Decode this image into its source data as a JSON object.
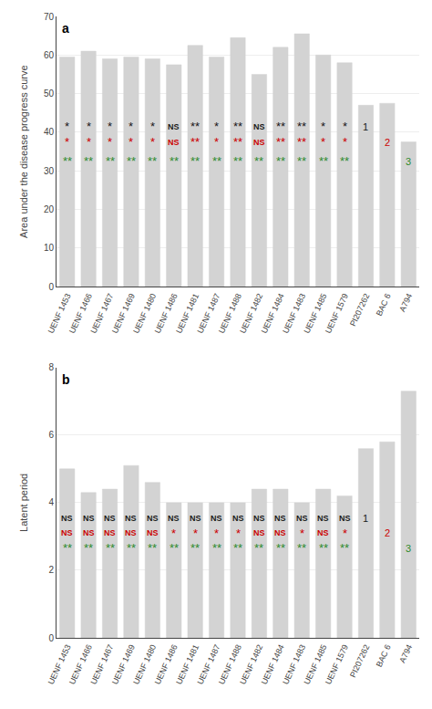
{
  "chart_data": [
    {
      "type": "bar",
      "panel_label": "a",
      "ylabel": "Area under the disease progress curve",
      "categories": [
        "UENF 1453",
        "UENF 1466",
        "UENF 1467",
        "UENF 1469",
        "UENF 1480",
        "UENF 1486",
        "UENF 1481",
        "UENF 1487",
        "UENF 1488",
        "UENF 1482",
        "UENF 1484",
        "UENF 1483",
        "UENF 1485",
        "UENF 1579",
        "PI207262",
        "BAC 6",
        "A794"
      ],
      "values": [
        59.5,
        61.0,
        59.0,
        59.5,
        59.0,
        57.5,
        62.5,
        59.5,
        64.5,
        55.0,
        62.0,
        65.5,
        60.0,
        58.0,
        47.0,
        47.5,
        37.5
      ],
      "color": "#d3d3d3",
      "ylim": [
        0,
        70
      ],
      "yticks": [
        0,
        10,
        20,
        30,
        40,
        50,
        60,
        70
      ],
      "grid": true,
      "annotations": [
        {
          "color": "#1a1a1a",
          "y": 41.5,
          "texts": [
            "*",
            "*",
            "*",
            "*",
            "*",
            "NS",
            "**",
            "*",
            "**",
            "NS",
            "**",
            "**",
            "*",
            "*",
            "1",
            null,
            null
          ]
        },
        {
          "color": "#cc0000",
          "y": 37.5,
          "texts": [
            "*",
            "*",
            "*",
            "*",
            "*",
            "NS",
            "**",
            "*",
            "**",
            "NS",
            "**",
            "**",
            "*",
            "*",
            null,
            "2",
            null
          ]
        },
        {
          "color": "#2e8b2e",
          "y": 32.5,
          "texts": [
            "**",
            "**",
            "**",
            "**",
            "**",
            "**",
            "**",
            "**",
            "**",
            "**",
            "**",
            "**",
            "**",
            "**",
            null,
            null,
            "3"
          ]
        }
      ]
    },
    {
      "type": "bar",
      "panel_label": "b",
      "ylabel": "Latent period",
      "categories": [
        "UENF 1453",
        "UENF 1466",
        "UENF 1467",
        "UENF 1469",
        "UENF 1480",
        "UENF 1486",
        "UENF 1481",
        "UENF 1487",
        "UENF 1488",
        "UENF 1482",
        "UENF 1484",
        "UENF 1483",
        "UENF 1485",
        "UENF 1579",
        "PI207262",
        "BAC 6",
        "A794"
      ],
      "values": [
        5.0,
        4.3,
        4.4,
        5.1,
        4.6,
        4.0,
        4.0,
        4.0,
        4.0,
        4.4,
        4.4,
        4.0,
        4.4,
        4.2,
        5.6,
        5.8,
        7.3
      ],
      "color": "#d3d3d3",
      "ylim": [
        0,
        8
      ],
      "yticks": [
        0,
        2,
        4,
        6,
        8
      ],
      "grid": true,
      "annotations": [
        {
          "color": "#1a1a1a",
          "y": 3.55,
          "texts": [
            "NS",
            "NS",
            "NS",
            "NS",
            "NS",
            "NS",
            "NS",
            "NS",
            "NS",
            "NS",
            "NS",
            "NS",
            "NS",
            "NS",
            "1",
            null,
            null
          ]
        },
        {
          "color": "#cc0000",
          "y": 3.1,
          "texts": [
            "NS",
            "NS",
            "NS",
            "NS",
            "NS",
            "*",
            "*",
            "*",
            "*",
            "NS",
            "NS",
            "*",
            "NS",
            "*",
            null,
            "2",
            null
          ]
        },
        {
          "color": "#2e8b2e",
          "y": 2.65,
          "texts": [
            "**",
            "**",
            "**",
            "**",
            "**",
            "**",
            "**",
            "**",
            "**",
            "**",
            "**",
            "**",
            "**",
            "**",
            null,
            null,
            "3"
          ]
        }
      ]
    }
  ]
}
